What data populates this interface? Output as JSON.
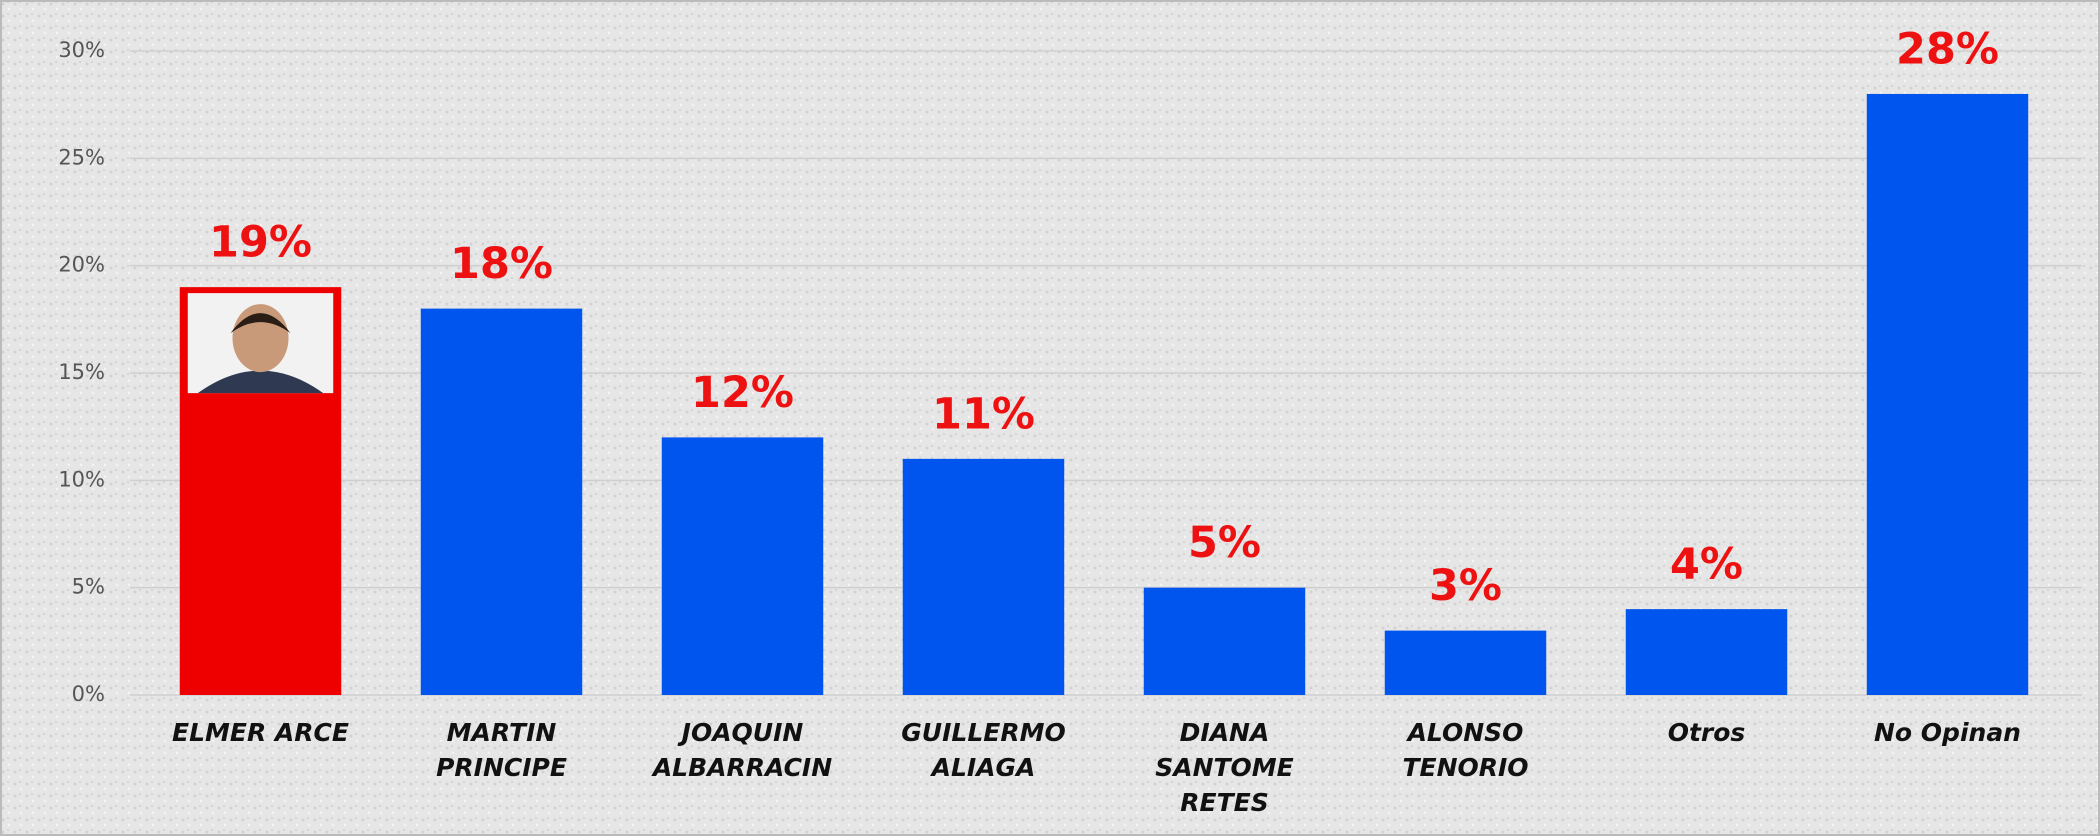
{
  "chart_data": {
    "type": "bar",
    "categories": [
      "ELMER ARCE",
      "MARTIN\nPRINCIPE",
      "JOAQUIN\nALBARRACIN",
      "GUILLERMO\nALIAGA",
      "DIANA\nSANTOME\nRETES",
      "ALONSO\nTENORIO",
      "Otros",
      "No Opinan"
    ],
    "values": [
      19,
      18,
      12,
      11,
      5,
      3,
      4,
      28
    ],
    "value_labels": [
      "19%",
      "18%",
      "12%",
      "11%",
      "5%",
      "3%",
      "4%",
      "28%"
    ],
    "colors": [
      "#ee0000",
      "#0055ee",
      "#0055ee",
      "#0055ee",
      "#0055ee",
      "#0055ee",
      "#0055ee",
      "#0055ee"
    ],
    "ylim": [
      0,
      30
    ],
    "yticks": [
      {
        "value": 0,
        "label": "0%"
      },
      {
        "value": 5,
        "label": "5%"
      },
      {
        "value": 10,
        "label": "10%"
      },
      {
        "value": 15,
        "label": "15%"
      },
      {
        "value": 20,
        "label": "20%"
      },
      {
        "value": 25,
        "label": "25%"
      },
      {
        "value": 30,
        "label": "30%"
      }
    ],
    "grid": true
  }
}
